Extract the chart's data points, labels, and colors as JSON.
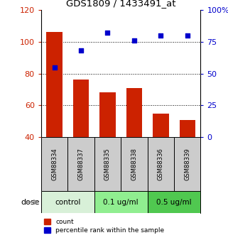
{
  "title": "GDS1809 / 1433491_at",
  "samples": [
    "GSM88334",
    "GSM88337",
    "GSM88335",
    "GSM88338",
    "GSM88336",
    "GSM88339"
  ],
  "groups": [
    {
      "label": "control",
      "indices": [
        0,
        1
      ],
      "color": "#d8f0d8"
    },
    {
      "label": "0.1 ug/ml",
      "indices": [
        2,
        3
      ],
      "color": "#90ee90"
    },
    {
      "label": "0.5 ug/ml",
      "indices": [
        4,
        5
      ],
      "color": "#50c850"
    }
  ],
  "bar_values": [
    106,
    76,
    68,
    71,
    55,
    51
  ],
  "percentile_values": [
    55,
    68,
    82,
    76,
    80,
    80
  ],
  "ylim_left": [
    40,
    120
  ],
  "ylim_right": [
    0,
    100
  ],
  "yticks_left": [
    40,
    60,
    80,
    100,
    120
  ],
  "yticks_right": [
    0,
    25,
    50,
    75,
    100
  ],
  "bar_color": "#cc2200",
  "dot_color": "#0000cc",
  "bar_width": 0.6,
  "dose_label": "dose",
  "legend_count": "count",
  "legend_percentile": "percentile rank within the sample",
  "label_color_left": "#cc2200",
  "label_color_right": "#0000cc",
  "sample_box_color": "#cccccc",
  "figsize": [
    3.21,
    3.45
  ],
  "dpi": 100
}
